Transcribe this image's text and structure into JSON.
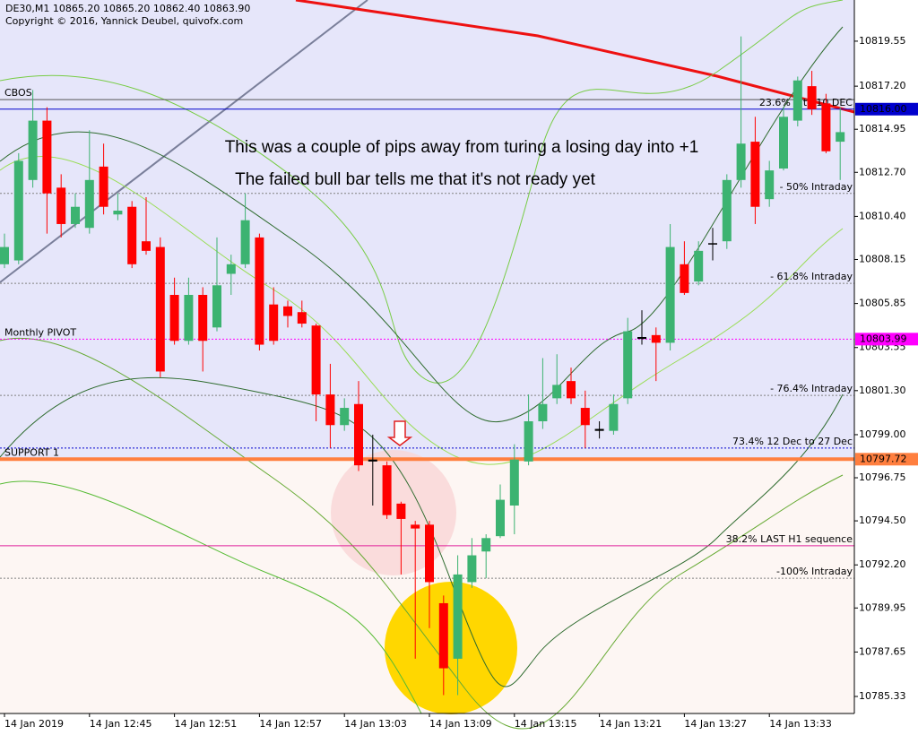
{
  "chart_data": {
    "type": "candlestick",
    "title": "DE30,M1  10865.20 10865.20 10862.40 10863.90",
    "subtitle": "Copyright © 2016, Yannick Deubel, quivofx.com",
    "annotations": [
      "This was a couple of pips away from turing a losing day into +1",
      "The failed bull bar tells me that it's not ready yet"
    ],
    "categories": [
      "14 Jan 2019",
      null,
      null,
      null,
      null,
      null,
      "14 Jan 12:45",
      null,
      null,
      null,
      null,
      null,
      "14 Jan 12:51",
      null,
      null,
      null,
      null,
      null,
      "14 Jan 12:57",
      null,
      null,
      null,
      null,
      null,
      "14 Jan 13:03",
      null,
      null,
      null,
      null,
      null,
      "14 Jan 13:09",
      null,
      null,
      null,
      null,
      null,
      "14 Jan 13:15",
      null,
      null,
      null,
      null,
      null,
      "14 Jan 13:21",
      null,
      null,
      null,
      null,
      null,
      "14 Jan 13:27",
      null,
      null,
      null,
      null,
      null,
      "14 Jan 13:33",
      null,
      null,
      null,
      null,
      null
    ],
    "open": [
      10807.9,
      10808.1,
      10812.3,
      10815.4,
      10811.9,
      10810.0,
      10809.8,
      10813.0,
      10810.5,
      10810.9,
      10809.1,
      10808.8,
      10806.3,
      10803.9,
      10806.3,
      10804.6,
      10807.4,
      10807.9,
      10809.3,
      10805.8,
      10805.7,
      10805.4,
      10804.7,
      10801.1,
      10799.5,
      10800.6,
      10797.7,
      10797.4,
      10795.4,
      10794.3,
      10794.3,
      10790.2,
      10787.3,
      10791.3,
      10792.9,
      10793.7,
      10795.3,
      10797.6,
      10799.7,
      10800.9,
      10801.8,
      10800.4,
      10799.3,
      10799.2,
      10800.9,
      10804.1,
      10804.2,
      10803.8,
      10807.9,
      10807.0,
      10809.0,
      10809.1,
      10812.3,
      10814.3,
      10811.3,
      10812.9,
      10815.4,
      10817.2,
      10816.3,
      10814.3
    ],
    "high": [
      10809.5,
      10813.7,
      10817.0,
      10816.1,
      10812.6,
      10811.6,
      10814.9,
      10814.2,
      10811.6,
      10811.2,
      10811.4,
      10809.3,
      10807.2,
      10807.2,
      10806.7,
      10809.3,
      10808.4,
      10811.6,
      10809.5,
      10806.7,
      10806.0,
      10806.0,
      10804.8,
      10802.7,
      10800.9,
      10801.8,
      10799.0,
      10797.6,
      10795.5,
      10794.5,
      10794.5,
      10790.6,
      10792.7,
      10793.6,
      10793.8,
      10796.4,
      10798.5,
      10801.1,
      10803.0,
      10803.2,
      10802.5,
      10801.3,
      10799.7,
      10801.1,
      10805.1,
      10805.5,
      10804.6,
      10810.0,
      10809.1,
      10809.1,
      10809.8,
      10812.6,
      10819.8,
      10815.6,
      10813.3,
      10816.1,
      10817.7,
      10818.0,
      10816.8,
      10816.1
    ],
    "low": [
      10807.7,
      10807.9,
      10811.9,
      10809.5,
      10809.3,
      10809.8,
      10809.5,
      10810.5,
      10810.2,
      10807.7,
      10808.4,
      10802.0,
      10803.7,
      10803.7,
      10802.3,
      10804.4,
      10806.3,
      10807.7,
      10803.4,
      10803.7,
      10804.6,
      10804.6,
      10799.7,
      10798.3,
      10799.2,
      10797.1,
      10795.3,
      10794.6,
      10791.7,
      10787.3,
      10788.9,
      10785.4,
      10785.4,
      10791.0,
      10791.5,
      10793.6,
      10793.8,
      10797.4,
      10799.3,
      10800.6,
      10800.6,
      10798.3,
      10798.8,
      10799.0,
      10800.6,
      10803.7,
      10801.8,
      10803.4,
      10806.3,
      10806.8,
      10808.1,
      10808.7,
      10811.9,
      10810.0,
      10810.9,
      10812.8,
      10815.1,
      10815.7,
      10813.7,
      10812.3
    ],
    "close": [
      10808.8,
      10813.3,
      10815.4,
      10811.6,
      10810.0,
      10810.9,
      10812.3,
      10810.9,
      10810.7,
      10807.9,
      10808.6,
      10802.3,
      10803.9,
      10806.3,
      10803.9,
      10806.8,
      10807.9,
      10810.2,
      10803.7,
      10803.9,
      10805.2,
      10804.8,
      10801.1,
      10799.5,
      10800.4,
      10797.4,
      10797.6,
      10794.8,
      10794.6,
      10794.1,
      10791.3,
      10786.8,
      10791.7,
      10792.7,
      10793.6,
      10795.6,
      10797.7,
      10799.7,
      10800.6,
      10801.6,
      10800.9,
      10799.5,
      10799.2,
      10800.6,
      10804.4,
      10804.0,
      10803.8,
      10808.8,
      10806.4,
      10808.6,
      10809.0,
      10812.3,
      10814.2,
      10810.9,
      10812.8,
      10815.6,
      10817.5,
      10816.0,
      10813.8,
      10814.8
    ],
    "up_color": "#3cb371",
    "down_color": "#ff0000",
    "ylim": [
      10784.44,
      10821.7
    ],
    "yticks": [
      10819.55,
      {
        "value": 10817.2,
        "label": "10817.20"
      },
      10814.95,
      {
        "value": 10812.7,
        "label": "10812.70"
      },
      {
        "value": 10810.4,
        "label": "10810.40"
      },
      10808.15,
      10805.85,
      10803.55,
      {
        "value": 10801.3,
        "label": "10801.30"
      },
      {
        "value": 10799,
        "label": "10799.00"
      },
      10796.75,
      {
        "value": 10794.5,
        "label": "10794.50"
      },
      {
        "value": 10792.2,
        "label": "10792.20"
      },
      10789.95,
      10787.65,
      10785.33
    ],
    "levels": [
      {
        "label": "CBOS",
        "value": 10816.5,
        "color": "#555555",
        "style": "solid",
        "align": "left"
      },
      {
        "label": "23.6% 3 to 10 DEC",
        "value": 10816,
        "color": "#0000cd",
        "style": "solid",
        "align": "right"
      },
      {
        "label": "- 50% Intraday",
        "value": 10811.6,
        "color": "#808080",
        "style": "dotted",
        "align": "right"
      },
      {
        "label": "- 61.8% Intraday",
        "value": 10806.9,
        "color": "#808080",
        "style": "dotted",
        "align": "right"
      },
      {
        "label": "Monthly PIVOT",
        "value": 10803.99,
        "color": "#ff00ff",
        "style": "dotted",
        "align": "left"
      },
      {
        "label": "- 76.4% Intraday",
        "value": 10801.05,
        "color": "#808080",
        "style": "dotted",
        "align": "right"
      },
      {
        "label": "73.4%  12 Dec to 27 Dec",
        "value": 10798.3,
        "color": "#0000cd",
        "style": "dotted",
        "align": "right"
      },
      {
        "label": "SUPPORT 1",
        "value": 10797.72,
        "color": "#ff7f3f",
        "style": "thick",
        "align": "left"
      },
      {
        "label": "38.2%  LAST H1 sequence",
        "value": 10793.2,
        "color": "#e0209a",
        "style": "solid",
        "align": "right"
      },
      {
        "label": "-100% Intraday",
        "value": 10791.5,
        "color": "#808080",
        "style": "dotted",
        "align": "right"
      }
    ],
    "price_marks": [
      {
        "value": 10816,
        "label": "10816.00",
        "color": "#0000cd"
      },
      {
        "value": 10803.99,
        "color": "#ff00ff"
      },
      {
        "value": 10797.72,
        "color": "#ff7f3f"
      }
    ]
  }
}
